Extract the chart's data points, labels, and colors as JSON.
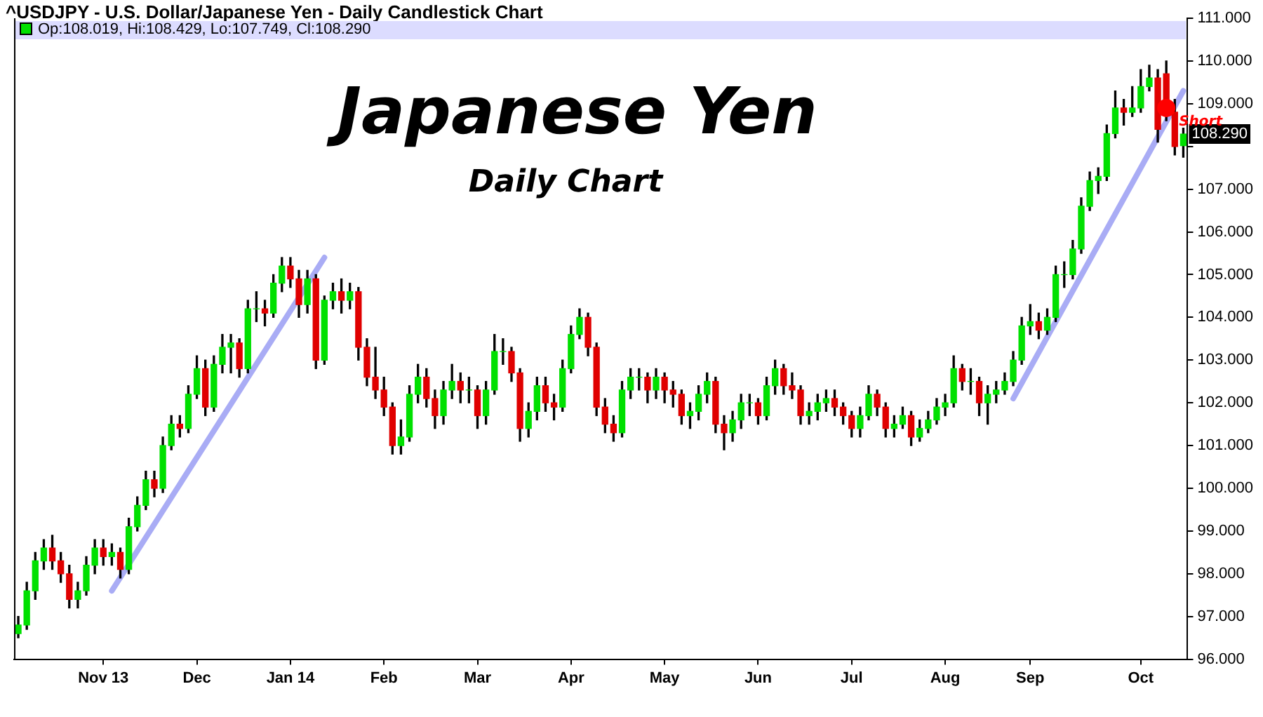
{
  "chart_data": {
    "type": "candlestick",
    "title": "^USDJPY - U.S. Dollar/Japanese Yen - Daily Candlestick Chart",
    "annotations": [
      "Op:108.019, Hi:108.429, Lo:107.749, Cl:108.290",
      "Japanese Yen",
      "Daily Chart",
      {
        "text": "108.290",
        "y": 108.29
      }
    ],
    "categories": [
      null,
      null,
      null,
      null,
      null,
      null,
      null,
      null,
      null,
      null,
      "Nov 13",
      null,
      null,
      null,
      null,
      null,
      null,
      null,
      null,
      null,
      null,
      "Dec",
      null,
      null,
      null,
      null,
      null,
      null,
      null,
      null,
      null,
      null,
      "Jan 14",
      null,
      null,
      null,
      null,
      null,
      null,
      null,
      null,
      null,
      null,
      "Feb",
      null,
      null,
      null,
      null,
      null,
      null,
      null,
      null,
      null,
      null,
      "Mar",
      null,
      null,
      null,
      null,
      null,
      null,
      null,
      null,
      null,
      null,
      "Apr",
      null,
      null,
      null,
      null,
      null,
      null,
      null,
      null,
      null,
      null,
      "May",
      null,
      null,
      null,
      null,
      null,
      null,
      null,
      null,
      null,
      null,
      "Jun",
      null,
      null,
      null,
      null,
      null,
      null,
      null,
      null,
      null,
      null,
      "Jul",
      null,
      null,
      null,
      null,
      null,
      null,
      null,
      null,
      null,
      null,
      "Aug",
      null,
      null,
      null,
      null,
      null,
      null,
      null,
      null,
      null,
      "Sep",
      null,
      null,
      null,
      null,
      null,
      null,
      null,
      null,
      null,
      null,
      null,
      null,
      "Oct",
      null,
      null,
      null,
      null,
      null
    ],
    "ohlc": [
      [
        96.6,
        97.0,
        96.5,
        96.8
      ],
      [
        96.8,
        97.8,
        96.7,
        97.6
      ],
      [
        97.6,
        98.5,
        97.4,
        98.3
      ],
      [
        98.3,
        98.8,
        98.1,
        98.6
      ],
      [
        98.6,
        98.9,
        98.1,
        98.3
      ],
      [
        98.3,
        98.5,
        97.8,
        98.0
      ],
      [
        98.0,
        98.2,
        97.2,
        97.4
      ],
      [
        97.4,
        97.8,
        97.2,
        97.6
      ],
      [
        97.6,
        98.4,
        97.5,
        98.2
      ],
      [
        98.2,
        98.8,
        98.0,
        98.6
      ],
      [
        98.6,
        98.8,
        98.2,
        98.4
      ],
      [
        98.4,
        98.7,
        98.2,
        98.5
      ],
      [
        98.5,
        98.6,
        97.9,
        98.1
      ],
      [
        98.1,
        99.3,
        98.0,
        99.1
      ],
      [
        99.1,
        99.8,
        99.0,
        99.6
      ],
      [
        99.6,
        100.4,
        99.5,
        100.2
      ],
      [
        100.2,
        100.4,
        99.8,
        100.0
      ],
      [
        100.0,
        101.2,
        99.9,
        101.0
      ],
      [
        101.0,
        101.7,
        100.9,
        101.5
      ],
      [
        101.5,
        101.7,
        101.2,
        101.4
      ],
      [
        101.4,
        102.4,
        101.3,
        102.2
      ],
      [
        102.2,
        103.1,
        102.1,
        102.8
      ],
      [
        102.8,
        103.0,
        101.7,
        101.9
      ],
      [
        101.9,
        103.1,
        101.8,
        102.9
      ],
      [
        102.9,
        103.6,
        102.7,
        103.3
      ],
      [
        103.3,
        103.6,
        102.7,
        103.4
      ],
      [
        103.4,
        103.5,
        102.6,
        102.8
      ],
      [
        102.8,
        104.4,
        102.7,
        104.2
      ],
      [
        104.2,
        104.6,
        103.9,
        104.2
      ],
      [
        104.2,
        104.4,
        103.8,
        104.1
      ],
      [
        104.1,
        105.0,
        104.0,
        104.8
      ],
      [
        104.8,
        105.4,
        104.6,
        105.2
      ],
      [
        105.2,
        105.4,
        104.7,
        104.9
      ],
      [
        104.9,
        105.1,
        104.0,
        104.3
      ],
      [
        104.3,
        105.1,
        104.1,
        104.9
      ],
      [
        104.9,
        105.0,
        102.8,
        103.0
      ],
      [
        103.0,
        104.5,
        102.9,
        104.4
      ],
      [
        104.4,
        104.8,
        104.2,
        104.6
      ],
      [
        104.6,
        104.9,
        104.1,
        104.4
      ],
      [
        104.4,
        104.8,
        104.2,
        104.6
      ],
      [
        104.6,
        104.7,
        103.0,
        103.3
      ],
      [
        103.3,
        103.5,
        102.4,
        102.6
      ],
      [
        102.6,
        103.3,
        102.1,
        102.3
      ],
      [
        102.3,
        102.6,
        101.7,
        101.9
      ],
      [
        101.9,
        102.0,
        100.8,
        101.0
      ],
      [
        101.0,
        101.6,
        100.8,
        101.2
      ],
      [
        101.2,
        102.4,
        101.1,
        102.2
      ],
      [
        102.2,
        102.9,
        102.0,
        102.6
      ],
      [
        102.6,
        102.8,
        101.9,
        102.1
      ],
      [
        102.1,
        102.3,
        101.4,
        101.7
      ],
      [
        101.7,
        102.5,
        101.5,
        102.3
      ],
      [
        102.3,
        102.9,
        102.1,
        102.5
      ],
      [
        102.5,
        102.7,
        102.0,
        102.3
      ],
      [
        102.3,
        102.6,
        102.0,
        102.3
      ],
      [
        102.3,
        102.4,
        101.4,
        101.7
      ],
      [
        101.7,
        102.5,
        101.5,
        102.3
      ],
      [
        102.3,
        103.6,
        102.2,
        103.2
      ],
      [
        103.2,
        103.5,
        102.9,
        103.2
      ],
      [
        103.2,
        103.3,
        102.5,
        102.7
      ],
      [
        102.7,
        102.8,
        101.1,
        101.4
      ],
      [
        101.4,
        102.0,
        101.2,
        101.8
      ],
      [
        101.8,
        102.6,
        101.6,
        102.4
      ],
      [
        102.4,
        102.6,
        101.8,
        102.0
      ],
      [
        102.0,
        102.2,
        101.6,
        101.9
      ],
      [
        101.9,
        103.0,
        101.8,
        102.8
      ],
      [
        102.8,
        103.8,
        102.7,
        103.6
      ],
      [
        103.6,
        104.2,
        103.5,
        104.0
      ],
      [
        104.0,
        104.1,
        103.1,
        103.3
      ],
      [
        103.3,
        103.4,
        101.7,
        101.9
      ],
      [
        101.9,
        102.1,
        101.3,
        101.5
      ],
      [
        101.5,
        101.7,
        101.1,
        101.3
      ],
      [
        101.3,
        102.5,
        101.2,
        102.3
      ],
      [
        102.3,
        102.8,
        102.1,
        102.6
      ],
      [
        102.6,
        102.8,
        102.3,
        102.6
      ],
      [
        102.6,
        102.7,
        102.0,
        102.3
      ],
      [
        102.3,
        102.8,
        102.1,
        102.6
      ],
      [
        102.6,
        102.7,
        102.0,
        102.3
      ],
      [
        102.3,
        102.5,
        101.9,
        102.2
      ],
      [
        102.2,
        102.3,
        101.5,
        101.7
      ],
      [
        101.7,
        102.0,
        101.4,
        101.8
      ],
      [
        101.8,
        102.4,
        101.6,
        102.2
      ],
      [
        102.2,
        102.7,
        102.0,
        102.5
      ],
      [
        102.5,
        102.6,
        101.3,
        101.5
      ],
      [
        101.5,
        101.7,
        100.9,
        101.3
      ],
      [
        101.3,
        101.8,
        101.1,
        101.6
      ],
      [
        101.6,
        102.2,
        101.4,
        102.0
      ],
      [
        102.0,
        102.2,
        101.7,
        102.0
      ],
      [
        102.0,
        102.1,
        101.5,
        101.7
      ],
      [
        101.7,
        102.6,
        101.6,
        102.4
      ],
      [
        102.4,
        103.0,
        102.2,
        102.8
      ],
      [
        102.8,
        102.9,
        102.2,
        102.4
      ],
      [
        102.4,
        102.7,
        102.1,
        102.3
      ],
      [
        102.3,
        102.4,
        101.5,
        101.7
      ],
      [
        101.7,
        102.0,
        101.5,
        101.8
      ],
      [
        101.8,
        102.2,
        101.6,
        102.0
      ],
      [
        102.0,
        102.3,
        101.8,
        102.1
      ],
      [
        102.1,
        102.3,
        101.7,
        101.9
      ],
      [
        101.9,
        102.0,
        101.5,
        101.7
      ],
      [
        101.7,
        101.8,
        101.2,
        101.4
      ],
      [
        101.4,
        101.9,
        101.2,
        101.7
      ],
      [
        101.7,
        102.4,
        101.6,
        102.2
      ],
      [
        102.2,
        102.3,
        101.7,
        101.9
      ],
      [
        101.9,
        102.0,
        101.2,
        101.4
      ],
      [
        101.4,
        101.7,
        101.2,
        101.5
      ],
      [
        101.5,
        101.9,
        101.4,
        101.7
      ],
      [
        101.7,
        101.8,
        101.0,
        101.2
      ],
      [
        101.2,
        101.6,
        101.1,
        101.4
      ],
      [
        101.4,
        101.8,
        101.3,
        101.6
      ],
      [
        101.6,
        102.1,
        101.5,
        101.9
      ],
      [
        101.9,
        102.2,
        101.7,
        102.0
      ],
      [
        102.0,
        103.1,
        101.9,
        102.8
      ],
      [
        102.8,
        102.9,
        102.3,
        102.5
      ],
      [
        102.5,
        102.8,
        102.2,
        102.5
      ],
      [
        102.5,
        102.6,
        101.7,
        102.0
      ],
      [
        102.0,
        102.4,
        101.5,
        102.2
      ],
      [
        102.2,
        102.5,
        102.0,
        102.3
      ],
      [
        102.3,
        102.7,
        102.2,
        102.5
      ],
      [
        102.5,
        103.2,
        102.4,
        103.0
      ],
      [
        103.0,
        104.0,
        102.9,
        103.8
      ],
      [
        103.8,
        104.3,
        103.6,
        103.9
      ],
      [
        103.9,
        104.1,
        103.5,
        103.7
      ],
      [
        103.7,
        104.2,
        103.6,
        104.0
      ],
      [
        104.0,
        105.2,
        103.9,
        105.0
      ],
      [
        105.0,
        105.3,
        104.7,
        105.0
      ],
      [
        105.0,
        105.8,
        104.9,
        105.6
      ],
      [
        105.6,
        106.8,
        105.5,
        106.6
      ],
      [
        106.6,
        107.4,
        106.5,
        107.2
      ],
      [
        107.2,
        107.5,
        106.9,
        107.3
      ],
      [
        107.3,
        108.5,
        107.2,
        108.3
      ],
      [
        108.3,
        109.3,
        108.2,
        108.9
      ],
      [
        108.9,
        109.1,
        108.5,
        108.8
      ],
      [
        108.8,
        109.4,
        108.7,
        108.9
      ],
      [
        108.9,
        109.8,
        108.8,
        109.4
      ],
      [
        109.4,
        109.9,
        109.3,
        109.6
      ],
      [
        109.6,
        109.8,
        108.1,
        108.4
      ],
      [
        109.7,
        110.0,
        108.6,
        108.8
      ],
      [
        108.8,
        109.1,
        107.8,
        108.0
      ],
      [
        108.019,
        108.429,
        107.749,
        108.29
      ]
    ],
    "series": [
      {
        "type": "line",
        "color": "#a9acf5",
        "values": [
          null,
          null,
          null,
          null,
          null,
          null,
          null,
          null,
          null,
          null,
          null,
          97.6,
          null,
          null,
          null,
          null,
          null,
          null,
          null,
          null,
          null,
          null,
          null,
          null,
          null,
          null,
          null,
          null,
          null,
          null,
          null,
          null,
          null,
          null,
          null,
          null,
          105.4,
          null,
          null,
          null,
          null,
          null,
          null,
          null,
          null,
          null,
          null,
          null,
          null,
          null,
          null,
          null,
          null,
          null,
          null,
          null,
          null,
          null,
          null,
          null,
          null,
          null,
          null,
          null,
          null,
          null,
          null,
          null,
          null,
          null,
          null,
          null,
          null,
          null,
          null,
          null,
          null,
          null,
          null,
          null,
          null,
          null,
          null,
          null,
          null,
          null,
          null,
          null,
          null,
          null,
          null,
          null,
          null,
          null,
          null,
          null,
          null,
          null,
          null,
          null,
          null,
          null,
          null,
          null,
          null,
          null,
          null,
          null,
          null,
          null,
          null,
          null,
          null,
          null,
          null,
          null,
          null,
          null,
          null,
          null,
          null,
          null,
          null,
          null,
          null,
          null,
          null,
          null,
          null,
          null,
          null,
          null,
          null,
          null,
          null,
          null,
          null,
          null
        ]
      },
      {
        "type": "line",
        "color": "#a9acf5",
        "values": [
          null,
          null,
          null,
          null,
          null,
          null,
          null,
          null,
          null,
          null,
          null,
          null,
          null,
          null,
          null,
          null,
          null,
          null,
          null,
          null,
          null,
          null,
          null,
          null,
          null,
          null,
          null,
          null,
          null,
          null,
          null,
          null,
          null,
          null,
          null,
          null,
          null,
          null,
          null,
          null,
          null,
          null,
          null,
          null,
          null,
          null,
          null,
          null,
          null,
          null,
          null,
          null,
          null,
          null,
          null,
          null,
          null,
          null,
          null,
          null,
          null,
          null,
          null,
          null,
          null,
          null,
          null,
          null,
          null,
          null,
          null,
          null,
          null,
          null,
          null,
          null,
          null,
          null,
          null,
          null,
          null,
          null,
          null,
          null,
          null,
          null,
          null,
          null,
          null,
          null,
          null,
          null,
          null,
          null,
          null,
          null,
          null,
          null,
          null,
          null,
          null,
          null,
          null,
          null,
          null,
          null,
          null,
          null,
          null,
          null,
          null,
          null,
          null,
          null,
          null,
          null,
          null,
          102.1,
          null,
          null,
          null,
          null,
          null,
          null,
          null,
          null,
          null,
          null,
          null,
          null,
          null,
          null,
          null,
          null,
          null,
          null,
          null,
          109.3
        ]
      },
      {
        "type": "scatter",
        "name": "Short",
        "color": "#ff0000",
        "marker": "circle",
        "values": [
          null,
          null,
          null,
          null,
          null,
          null,
          null,
          null,
          null,
          null,
          null,
          null,
          null,
          null,
          null,
          null,
          null,
          null,
          null,
          null,
          null,
          null,
          null,
          null,
          null,
          null,
          null,
          null,
          null,
          null,
          null,
          null,
          null,
          null,
          null,
          null,
          null,
          null,
          null,
          null,
          null,
          null,
          null,
          null,
          null,
          null,
          null,
          null,
          null,
          null,
          null,
          null,
          null,
          null,
          null,
          null,
          null,
          null,
          null,
          null,
          null,
          null,
          null,
          null,
          null,
          null,
          null,
          null,
          null,
          null,
          null,
          null,
          null,
          null,
          null,
          null,
          null,
          null,
          null,
          null,
          null,
          null,
          null,
          null,
          null,
          null,
          null,
          null,
          null,
          null,
          null,
          null,
          null,
          null,
          null,
          null,
          null,
          null,
          null,
          null,
          null,
          null,
          null,
          null,
          null,
          null,
          null,
          null,
          null,
          null,
          null,
          null,
          null,
          null,
          null,
          null,
          null,
          null,
          null,
          null,
          null,
          null,
          null,
          null,
          null,
          null,
          null,
          null,
          null,
          null,
          null,
          null,
          null,
          null,
          null,
          108.9,
          null,
          null
        ]
      }
    ],
    "ylim": [
      96,
      111
    ],
    "yticks": [
      {
        "value": 96,
        "label": "96.000"
      },
      {
        "value": 97,
        "label": "97.000"
      },
      {
        "value": 98,
        "label": "98.000"
      },
      {
        "value": 99,
        "label": "99.000"
      },
      {
        "value": 100,
        "label": "100.000"
      },
      {
        "value": 101,
        "label": "101.000"
      },
      {
        "value": 102,
        "label": "102.000"
      },
      {
        "value": 103,
        "label": "103.000"
      },
      {
        "value": 104,
        "label": "104.000"
      },
      {
        "value": 105,
        "label": "105.000"
      },
      {
        "value": 106,
        "label": "106.000"
      },
      {
        "value": 107,
        "label": "107.000"
      },
      {
        "value": 108,
        "label": null
      },
      {
        "value": 109,
        "label": "109.000"
      },
      {
        "value": 110,
        "label": "110.000"
      },
      {
        "value": 111,
        "label": "111.000"
      }
    ]
  }
}
